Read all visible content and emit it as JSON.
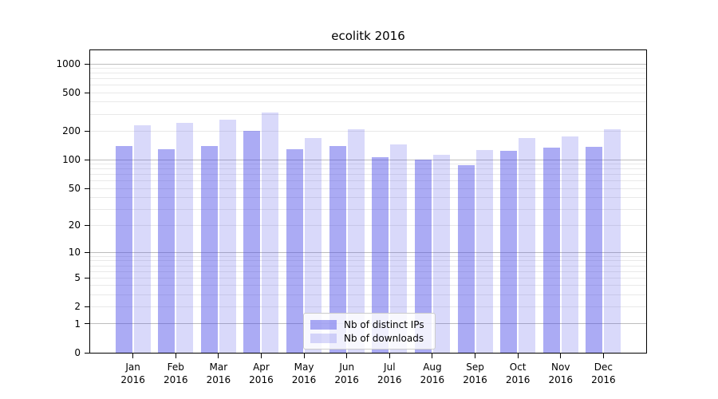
{
  "title": "ecolitk 2016",
  "legend": {
    "items": [
      "Nb of distinct IPs",
      "Nb of downloads"
    ]
  },
  "axes": {
    "y_tick_values": [
      0,
      1,
      2,
      5,
      10,
      20,
      50,
      100,
      200,
      500,
      1000
    ],
    "x_year": "2016"
  },
  "colors": {
    "bar_fill": "#5050e8",
    "major_grid": "#bdbdbd",
    "minor_grid": "#e9e9e9",
    "axis_frame": "#000000",
    "legend_border": "#cccccc"
  },
  "chart_data": {
    "type": "bar",
    "title": "ecolitk 2016",
    "xlabel": "",
    "ylabel": "",
    "yscale": "log1p",
    "ylim": [
      0,
      1385
    ],
    "grid": true,
    "legend_position": "lower center",
    "categories": [
      "Jan 2016",
      "Feb 2016",
      "Mar 2016",
      "Apr 2016",
      "May 2016",
      "Jun 2016",
      "Jul 2016",
      "Aug 2016",
      "Sep 2016",
      "Oct 2016",
      "Nov 2016",
      "Dec 2016"
    ],
    "series": [
      {
        "name": "Nb of distinct IPs",
        "color": "#5050e8",
        "opacity": 0.48,
        "values": [
          139,
          128,
          139,
          199,
          129,
          140,
          106,
          100,
          88,
          123,
          133,
          137
        ]
      },
      {
        "name": "Nb of downloads",
        "color": "#5050e8",
        "opacity": 0.22,
        "values": [
          231,
          244,
          262,
          310,
          170,
          207,
          145,
          112,
          126,
          168,
          175,
          207
        ]
      }
    ],
    "yticks": [
      0,
      1,
      2,
      5,
      10,
      20,
      50,
      100,
      200,
      500,
      1000
    ],
    "major_gridline_values": [
      1,
      10,
      100,
      1000
    ],
    "minor_gridline_values": [
      2,
      3,
      4,
      5,
      6,
      7,
      8,
      9,
      20,
      30,
      40,
      50,
      60,
      70,
      80,
      90,
      200,
      300,
      400,
      500,
      600,
      700,
      800,
      900
    ]
  }
}
